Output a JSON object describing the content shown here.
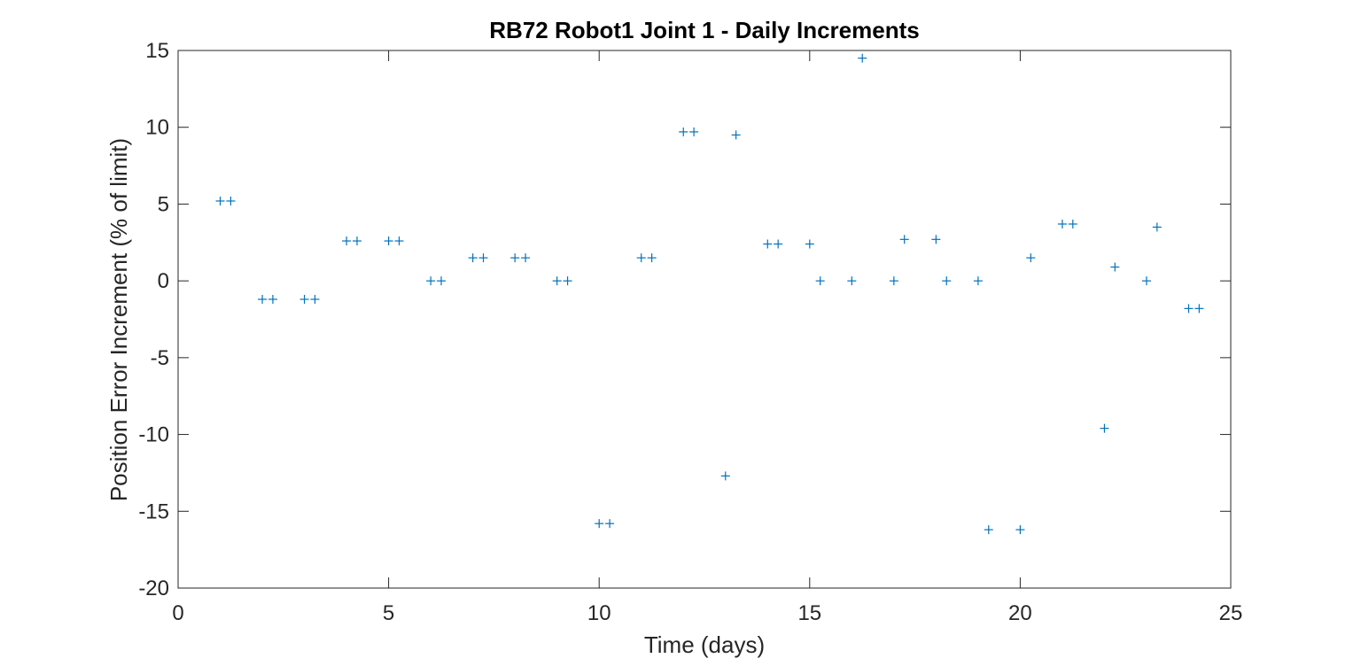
{
  "chart_data": {
    "type": "scatter",
    "title": "RB72 Robot1 Joint 1 - Daily Increments",
    "xlabel": "Time (days)",
    "ylabel": "Position Error Increment (% of limit)",
    "xlim": [
      0,
      25
    ],
    "ylim": [
      -20,
      15
    ],
    "xticks": [
      0,
      5,
      10,
      15,
      20,
      25
    ],
    "yticks": [
      -20,
      -15,
      -10,
      -5,
      0,
      5,
      10,
      15
    ],
    "grid": false,
    "legend": "none",
    "marker": "+",
    "marker_color": "#0072bd",
    "series": [
      {
        "x": [
          1.0,
          1.25,
          2.0,
          2.25,
          3.0,
          3.25,
          4.0,
          4.25,
          5.0,
          5.25,
          6.0,
          6.25,
          7.0,
          7.25,
          8.0,
          8.25,
          9.0,
          9.25,
          10.0,
          10.25,
          11.0,
          11.25,
          12.0,
          12.25,
          13.0,
          13.25,
          14.0,
          14.25,
          15.0,
          15.25,
          16.0,
          16.25,
          17.0,
          17.25,
          18.0,
          18.25,
          19.0,
          19.25,
          20.0,
          20.25,
          21.0,
          21.25,
          22.0,
          22.25,
          23.0,
          23.25,
          24.0,
          24.25
        ],
        "y": [
          5.2,
          5.2,
          -1.2,
          -1.2,
          -1.2,
          -1.2,
          2.6,
          2.6,
          2.6,
          2.6,
          0.0,
          0.0,
          1.5,
          1.5,
          1.5,
          1.5,
          0.0,
          0.0,
          -15.8,
          -15.8,
          1.5,
          1.5,
          9.7,
          9.7,
          -12.7,
          9.5,
          2.4,
          2.4,
          2.4,
          0.0,
          0.0,
          14.5,
          0.0,
          2.7,
          2.7,
          0.0,
          0.0,
          -16.2,
          -16.2,
          1.5,
          3.7,
          3.7,
          -9.6,
          0.9,
          0.0,
          3.5,
          -1.8,
          -1.8
        ]
      }
    ]
  }
}
